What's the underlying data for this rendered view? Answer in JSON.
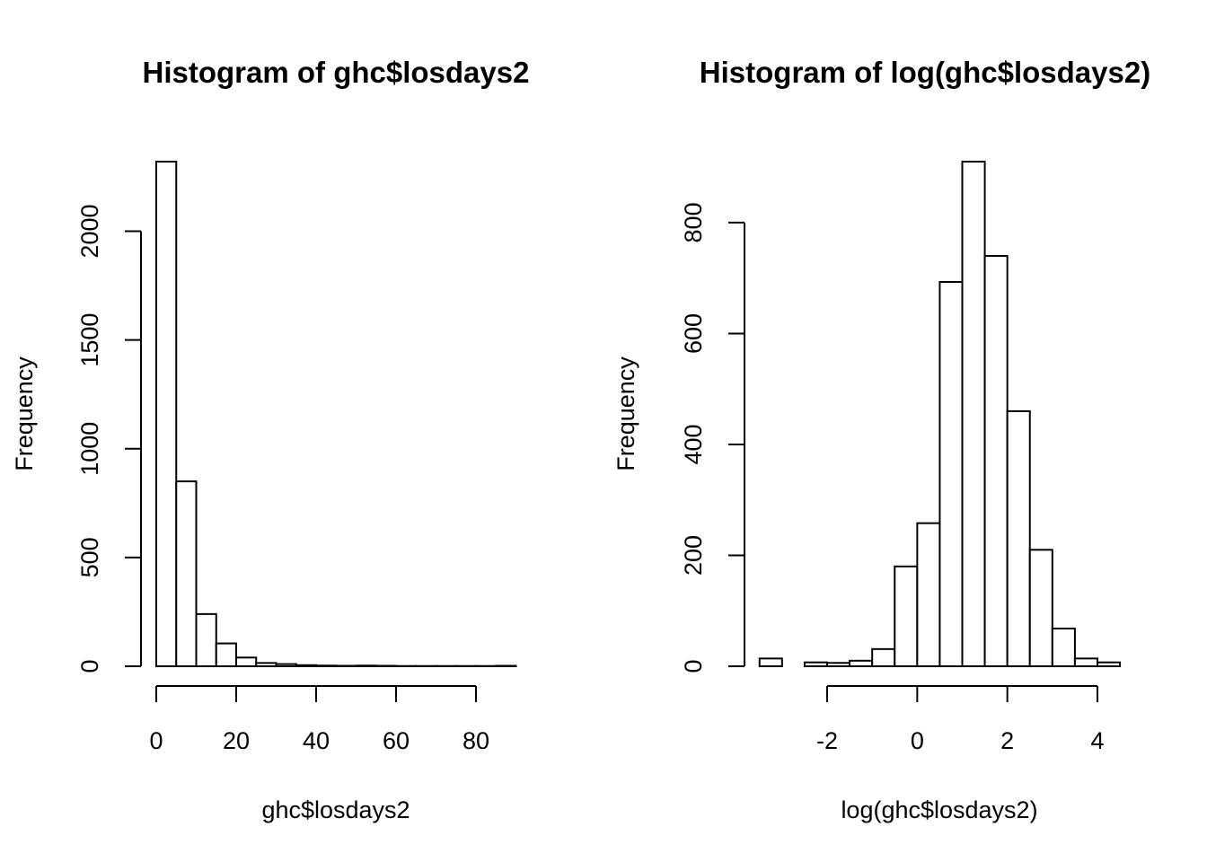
{
  "chart_data": [
    {
      "type": "bar",
      "title": "Histogram of ghc$losdays2",
      "xlabel": "ghc$losdays2",
      "ylabel": "Frequency",
      "xlim": [
        0,
        90
      ],
      "ylim": [
        0,
        2320
      ],
      "x_ticks": [
        0,
        20,
        40,
        60,
        80
      ],
      "y_ticks": [
        0,
        500,
        1000,
        1500,
        2000
      ],
      "bin_edges": [
        0,
        5,
        10,
        15,
        20,
        25,
        30,
        35,
        40,
        45,
        50,
        55,
        60,
        65,
        70,
        75,
        80,
        85,
        90
      ],
      "values": [
        2320,
        850,
        240,
        105,
        40,
        15,
        10,
        5,
        3,
        2,
        3,
        2,
        1,
        1,
        1,
        1,
        1,
        2
      ],
      "grid": false
    },
    {
      "type": "bar",
      "title": "Histogram of log(ghc$losdays2)",
      "xlabel": "log(ghc$losdays2)",
      "ylabel": "Frequency",
      "xlim": [
        -3.5,
        4.5
      ],
      "ylim": [
        0,
        910
      ],
      "x_ticks": [
        -2,
        0,
        2,
        4
      ],
      "y_ticks": [
        0,
        200,
        400,
        600,
        800
      ],
      "bin_edges": [
        -3.5,
        -3,
        -2.5,
        -2,
        -1.5,
        -1,
        -0.5,
        0,
        0.5,
        1,
        1.5,
        2,
        2.5,
        3,
        3.5,
        4,
        4.5
      ],
      "values": [
        14,
        0,
        7,
        6,
        10,
        31,
        180,
        258,
        693,
        910,
        740,
        460,
        210,
        68,
        14,
        7
      ],
      "grid": false
    }
  ]
}
